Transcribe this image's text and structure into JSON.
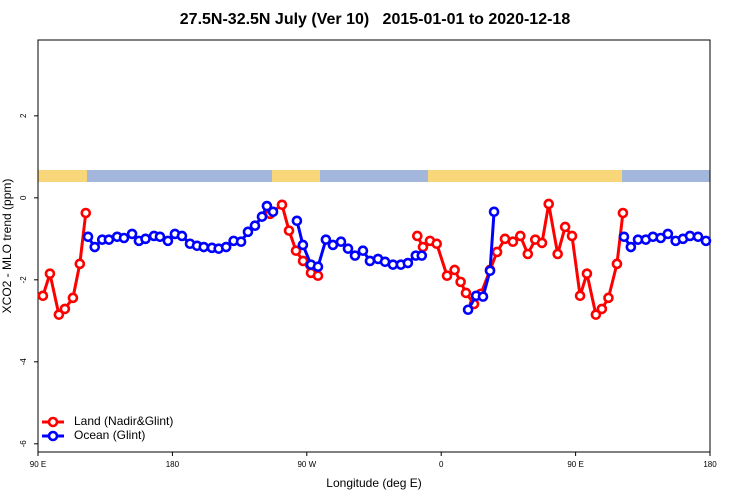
{
  "chart_data": {
    "type": "line",
    "title": "27.5N-32.5N July (Ver 10)   2015-01-01 to 2020-12-18",
    "x_label": "Longitude (deg E)",
    "y_label": "XCO2 - MLO trend (ppm)",
    "xlim": [
      90,
      540
    ],
    "ylim": [
      -6.2,
      3.85
    ],
    "xticks": [
      {
        "value": 90,
        "label": "90 E"
      },
      180,
      {
        "value": 270,
        "label": "90 W"
      },
      {
        "value": 360,
        "label": "0"
      },
      {
        "value": 450,
        "label": "90 E"
      },
      {
        "value": 540,
        "label": "180"
      }
    ],
    "yticks": [
      -6,
      -4,
      -2,
      0,
      2
    ],
    "legend": "bottom-left",
    "series": [
      {
        "name": "Land (Nadir&Glint)",
        "color": "#ff0000",
        "x": [
          93.3,
          98,
          104,
          108,
          113.4,
          118,
          122,
          245,
          245.4,
          253.4,
          258.1,
          262.8,
          267.5,
          272.8,
          277.5,
          344,
          344,
          347.8,
          352.5,
          357,
          363.9,
          369,
          373,
          376.6,
          382,
          386.6,
          392.7,
          397.4,
          402.7,
          408,
          413,
          418,
          423,
          427.5,
          432,
          438,
          443,
          447.6,
          453,
          457.6,
          463.6,
          467.6,
          472,
          477.7,
          481.7
        ],
        "values": [
          -2.39,
          -1.85,
          -2.85,
          -2.71,
          -2.44,
          -1.61,
          -0.37,
          null,
          -0.39,
          -0.17,
          -0.8,
          -1.29,
          -1.54,
          -1.83,
          -1.9,
          null,
          -0.93,
          -1.2,
          -1.05,
          -1.12,
          -1.9,
          -1.76,
          -2.05,
          -2.32,
          -2.59,
          -2.34,
          -1.76,
          -1.32,
          -1,
          -1.07,
          -0.93,
          -1.37,
          -1.02,
          -1.1,
          -0.15,
          -1.37,
          -0.71,
          -0.93,
          -2.39,
          -1.85,
          -2.85,
          -2.71,
          -2.44,
          -1.61,
          -0.37
        ]
      },
      {
        "name": "Ocean (Glint)",
        "color": "#0000ff",
        "x": [
          123.5,
          128,
          133,
          137.5,
          143,
          147.6,
          153,
          157.6,
          162,
          167.7,
          171.7,
          177,
          181.7,
          186.4,
          191.8,
          196.5,
          201,
          206.5,
          211,
          216,
          221,
          226,
          230.6,
          235.3,
          240,
          243.3,
          247.4,
          263.4,
          263.4,
          267.4,
          272.8,
          277.5,
          282.8,
          287.5,
          292.9,
          297.6,
          302.3,
          307.6,
          312.3,
          317.7,
          322.4,
          327.7,
          333,
          337.7,
          343,
          347,
          378,
          378,
          383.4,
          388,
          392.7,
          395.4,
          482.4,
          482.4,
          487,
          491.8,
          497,
          501.8,
          507,
          511.8,
          517,
          521.9,
          526.6,
          532,
          537.3
        ],
        "values": [
          -0.95,
          -1.2,
          -1.02,
          -1.02,
          -0.95,
          -0.98,
          -0.88,
          -1.05,
          -1,
          -0.93,
          -0.95,
          -1.05,
          -0.88,
          -0.93,
          -1.12,
          -1.17,
          -1.2,
          -1.22,
          -1.24,
          -1.2,
          -1.05,
          -1.07,
          -0.83,
          -0.68,
          -0.46,
          -0.2,
          -0.34,
          null,
          -0.56,
          -1.15,
          -1.63,
          -1.68,
          -1.02,
          -1.15,
          -1.07,
          -1.24,
          -1.41,
          -1.29,
          -1.54,
          -1.49,
          -1.56,
          -1.63,
          -1.63,
          -1.59,
          -1.41,
          -1.41,
          null,
          -2.73,
          -2.39,
          -2.41,
          -1.78,
          -0.34,
          null,
          -0.95,
          -1.2,
          -1.02,
          -1.02,
          -0.95,
          -0.98,
          -0.88,
          -1.05,
          -1,
          -0.93,
          -0.95,
          -1.05
        ]
      }
    ]
  }
}
